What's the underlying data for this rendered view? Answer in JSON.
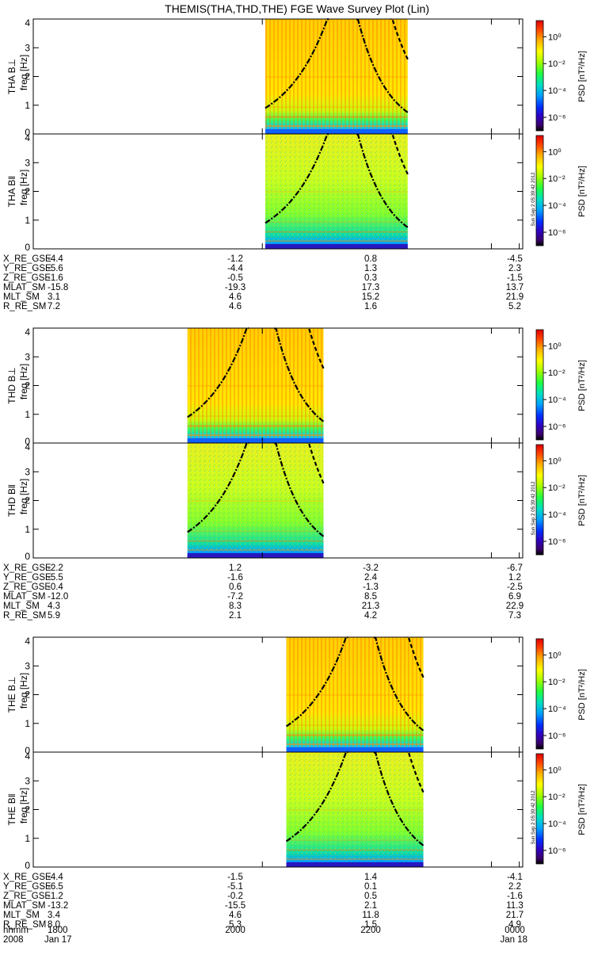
{
  "title": "THEMIS(THA,THD,THE) FGE Wave Survey Plot (Lin)",
  "freq_label": "freq [Hz]",
  "cbar_label": "PSD [nT²/Hz]",
  "stamp": "Sun Sep 2 05:39:42 2012",
  "chart_data": {
    "type": "heatmap",
    "x_axis": {
      "label": "hhmm",
      "tick_labels": [
        "1800",
        "2000",
        "2200",
        "0000"
      ],
      "date_left": "2008",
      "date_left2": "Jan 17",
      "date_right": "Jan 18",
      "range": [
        "1800",
        "0000"
      ]
    },
    "y_axis": {
      "label": "freq [Hz]",
      "ticks": [
        0,
        1,
        2,
        3,
        4
      ],
      "range": [
        0,
        4
      ]
    },
    "colorbar": {
      "label": "PSD [nT²/Hz]",
      "tick_labels": [
        "10⁰",
        "10⁻²",
        "10⁻⁴",
        "10⁻⁶"
      ],
      "ticks_exp": [
        0,
        -2,
        -4,
        -6
      ],
      "range_exp": [
        -7,
        1.2
      ],
      "log_scale": true
    },
    "probes": [
      {
        "name": "THA",
        "panels": [
          "THA B⊥",
          "THA B‖"
        ],
        "data_start": "2000 + 8m",
        "data_extent_frac": [
          0.474,
          0.765
        ],
        "rows": [
          [
            "X_RE_GSE",
            "-4.4",
            "-1.2",
            "0.8",
            "-4.5"
          ],
          [
            "Y_RE_GSE",
            "-5.6",
            "-4.4",
            "1.3",
            "2.3"
          ],
          [
            "Z_RE_GSE",
            "-1.6",
            "-0.5",
            "0.3",
            "-1.5"
          ],
          [
            "MLAT_SM",
            "-15.8",
            "-19.3",
            "17.3",
            "13.7"
          ],
          [
            "MLT_SM",
            "3.1",
            "4.6",
            "15.2",
            "21.9"
          ],
          [
            "R_RE_SM",
            "7.2",
            "4.6",
            "1.6",
            "5.2"
          ]
        ]
      },
      {
        "name": "THD",
        "panels": [
          "THD B⊥",
          "THD B‖"
        ],
        "data_extent_frac": [
          0.315,
          0.593
        ],
        "rows": [
          [
            "X_RE_GSE",
            "-2.2",
            "1.2",
            "-3.2",
            "-6.7"
          ],
          [
            "Y_RE_GSE",
            "-5.5",
            "-1.6",
            "2.4",
            "1.2"
          ],
          [
            "Z_RE_GSE",
            "-0.4",
            "0.6",
            "-1.3",
            "-2.5"
          ],
          [
            "MLAT_SM",
            "-12.0",
            "-7.2",
            "8.5",
            "6.9"
          ],
          [
            "MLT_SM",
            "4.3",
            "8.3",
            "21.3",
            "22.9"
          ],
          [
            "R_RE_SM",
            "5.9",
            "2.1",
            "4.2",
            "7.3"
          ]
        ]
      },
      {
        "name": "THE",
        "panels": [
          "THE B⊥",
          "THE B‖"
        ],
        "data_extent_frac": [
          0.517,
          0.797
        ],
        "rows": [
          [
            "X_RE_GSE",
            "-4.4",
            "-1.5",
            "1.4",
            "-4.1"
          ],
          [
            "Y_RE_GSE",
            "-6.5",
            "-5.1",
            "0.1",
            "2.2"
          ],
          [
            "Z_RE_GSE",
            "-1.2",
            "-0.2",
            "0.5",
            "-1.6"
          ],
          [
            "MLAT_SM",
            "-13.2",
            "-15.5",
            "2.1",
            "11.3"
          ],
          [
            "MLT_SM",
            "3.4",
            "4.6",
            "11.8",
            "21.7"
          ],
          [
            "R_RE_SM",
            "8.0",
            "5.3",
            "1.5",
            "4.9"
          ]
        ]
      }
    ]
  }
}
